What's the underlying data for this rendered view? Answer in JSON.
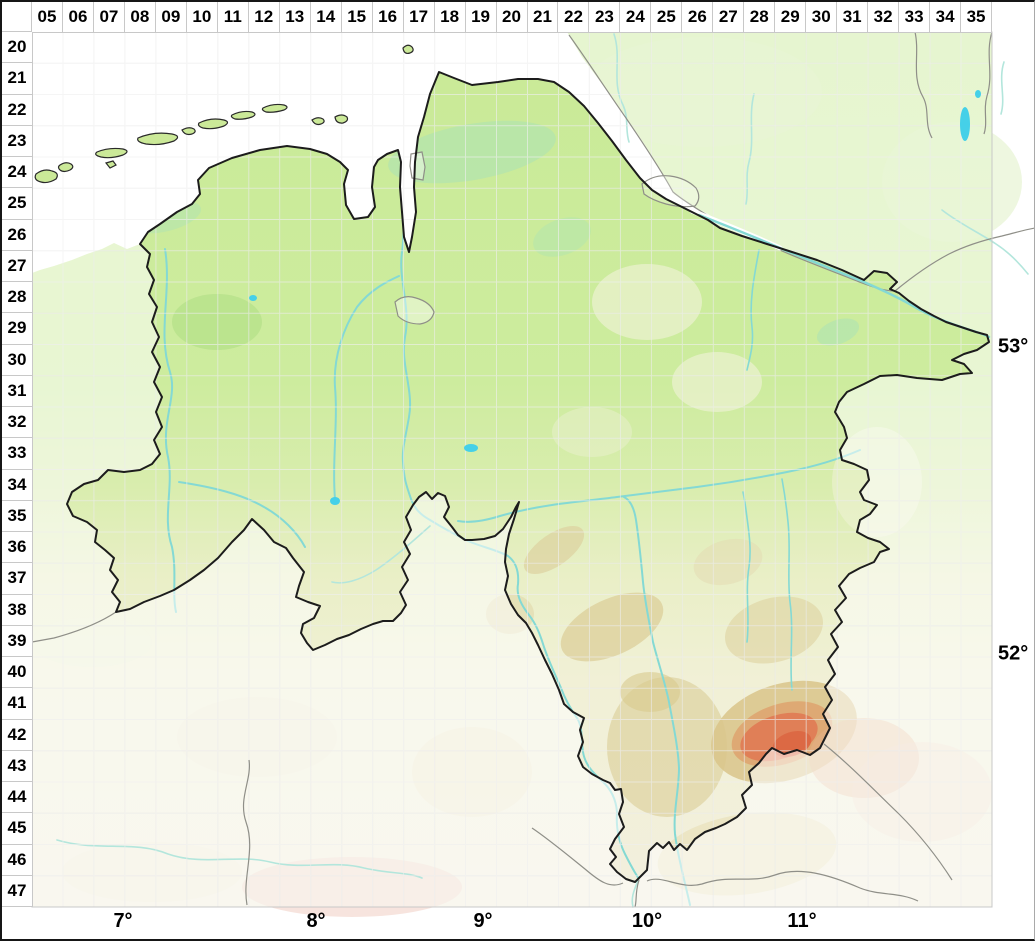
{
  "map_frame": {
    "column_labels": [
      "05",
      "06",
      "07",
      "08",
      "09",
      "10",
      "11",
      "12",
      "13",
      "14",
      "15",
      "16",
      "17",
      "18",
      "19",
      "20",
      "21",
      "22",
      "23",
      "24",
      "25",
      "26",
      "27",
      "28",
      "29",
      "30",
      "31",
      "32",
      "33",
      "34",
      "35"
    ],
    "row_labels": [
      "20",
      "21",
      "22",
      "23",
      "24",
      "25",
      "26",
      "27",
      "28",
      "29",
      "30",
      "31",
      "32",
      "33",
      "34",
      "35",
      "36",
      "37",
      "38",
      "39",
      "40",
      "41",
      "42",
      "43",
      "44",
      "45",
      "46",
      "47"
    ],
    "longitude_labels": [
      "7°",
      "8°",
      "9°",
      "10°",
      "11°"
    ],
    "latitude_labels": [
      "53°",
      "52°"
    ]
  },
  "map": {
    "colors": {
      "sea": "#ffffff",
      "lowland_green": "#cdec9e",
      "lowland_green_top": "#c9ea97",
      "upland_cream": "#f2efdd",
      "marsh_teal": "#a7e2b8",
      "hills_tan": "#dbcd96",
      "harz_orange": "#e07a54",
      "harz_red": "#dc6743",
      "river_cyan": "#84d9d4",
      "pale_river": "#b3e6dc",
      "lake_cyan": "#45d0e8",
      "island_green": "#cbe998",
      "region_border": "#1c1c1c",
      "neighbor_border": "#8f8f88",
      "grid_line": "#d9d9d9",
      "label_text": "#000000"
    }
  }
}
